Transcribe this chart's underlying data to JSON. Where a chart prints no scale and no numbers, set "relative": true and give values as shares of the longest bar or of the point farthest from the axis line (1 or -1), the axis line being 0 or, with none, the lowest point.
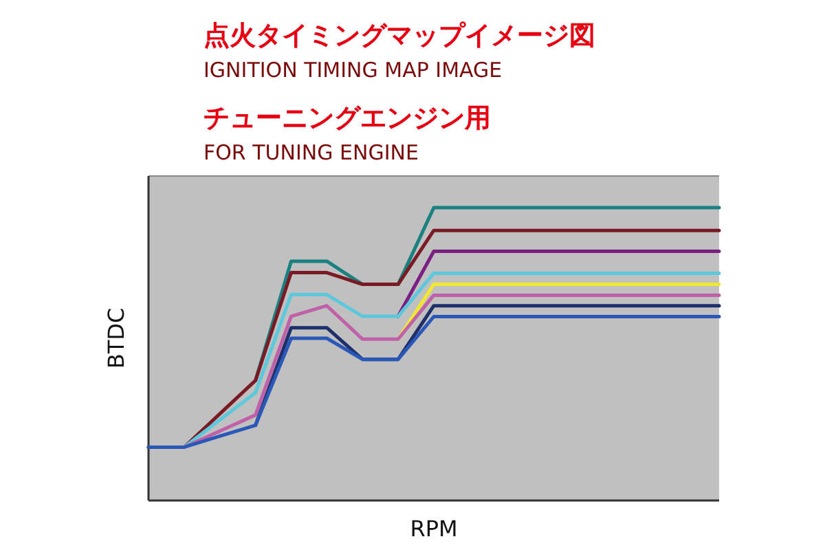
{
  "chart_data": {
    "type": "line",
    "title": "点火タイミングマップイメージ図",
    "subtitle": "IGNITION TIMING MAP IMAGE",
    "annotations": [
      "チューニングエンジン用",
      "FOR TUNING ENGINE"
    ],
    "xlabel": "RPM",
    "ylabel": "BTDC",
    "relative": true,
    "categories": [
      null,
      null,
      null,
      null,
      null,
      null,
      null,
      null,
      null,
      null,
      null,
      null,
      null,
      null,
      null,
      null,
      null
    ],
    "series": [
      {
        "color": "#1a8080",
        "values": [
          null,
          null,
          null,
          0.41,
          0.817,
          0.817,
          0.738,
          0.738,
          1.0,
          1.0,
          1.0,
          1.0,
          1.0,
          1.0,
          1.0,
          1.0,
          1.0
        ]
      },
      {
        "color": "#7a1a24",
        "values": [
          0.182,
          0.182,
          0.296,
          0.41,
          0.778,
          0.778,
          0.738,
          0.738,
          0.922,
          0.922,
          0.922,
          0.922,
          0.922,
          0.922,
          0.922,
          0.922,
          0.922
        ]
      },
      {
        "color": "#7b1f82",
        "values": [
          null,
          null,
          null,
          null,
          null,
          null,
          null,
          0.629,
          0.851,
          0.851,
          0.851,
          0.851,
          0.851,
          0.851,
          0.851,
          0.851,
          0.851
        ]
      },
      {
        "color": "#5cc8dc",
        "values": [
          null,
          0.182,
          0.275,
          0.368,
          0.703,
          0.703,
          0.629,
          0.629,
          0.776,
          0.776,
          0.776,
          0.776,
          0.776,
          0.776,
          0.776,
          0.776,
          0.776
        ]
      },
      {
        "color": "#f0e830",
        "values": [
          null,
          null,
          null,
          null,
          null,
          null,
          null,
          0.551,
          0.738,
          0.738,
          0.738,
          0.738,
          0.738,
          0.738,
          0.738,
          0.738,
          0.738
        ]
      },
      {
        "color": "#c060a8",
        "values": [
          null,
          0.182,
          0.237,
          0.292,
          0.629,
          0.665,
          0.551,
          0.551,
          0.701,
          0.701,
          0.701,
          0.701,
          0.701,
          0.701,
          0.701,
          0.701,
          0.701
        ]
      },
      {
        "color": "#1f2f6a",
        "values": [
          null,
          null,
          null,
          0.257,
          0.59,
          0.59,
          0.482,
          0.482,
          0.665,
          0.665,
          0.665,
          0.665,
          0.665,
          0.665,
          0.665,
          0.665,
          0.665
        ]
      },
      {
        "color": "#2a58b8",
        "values": [
          0.182,
          0.182,
          0.22,
          0.257,
          0.554,
          0.554,
          0.482,
          0.482,
          0.628,
          0.628,
          0.628,
          0.628,
          0.628,
          0.628,
          0.628,
          0.628,
          0.628
        ]
      }
    ]
  }
}
